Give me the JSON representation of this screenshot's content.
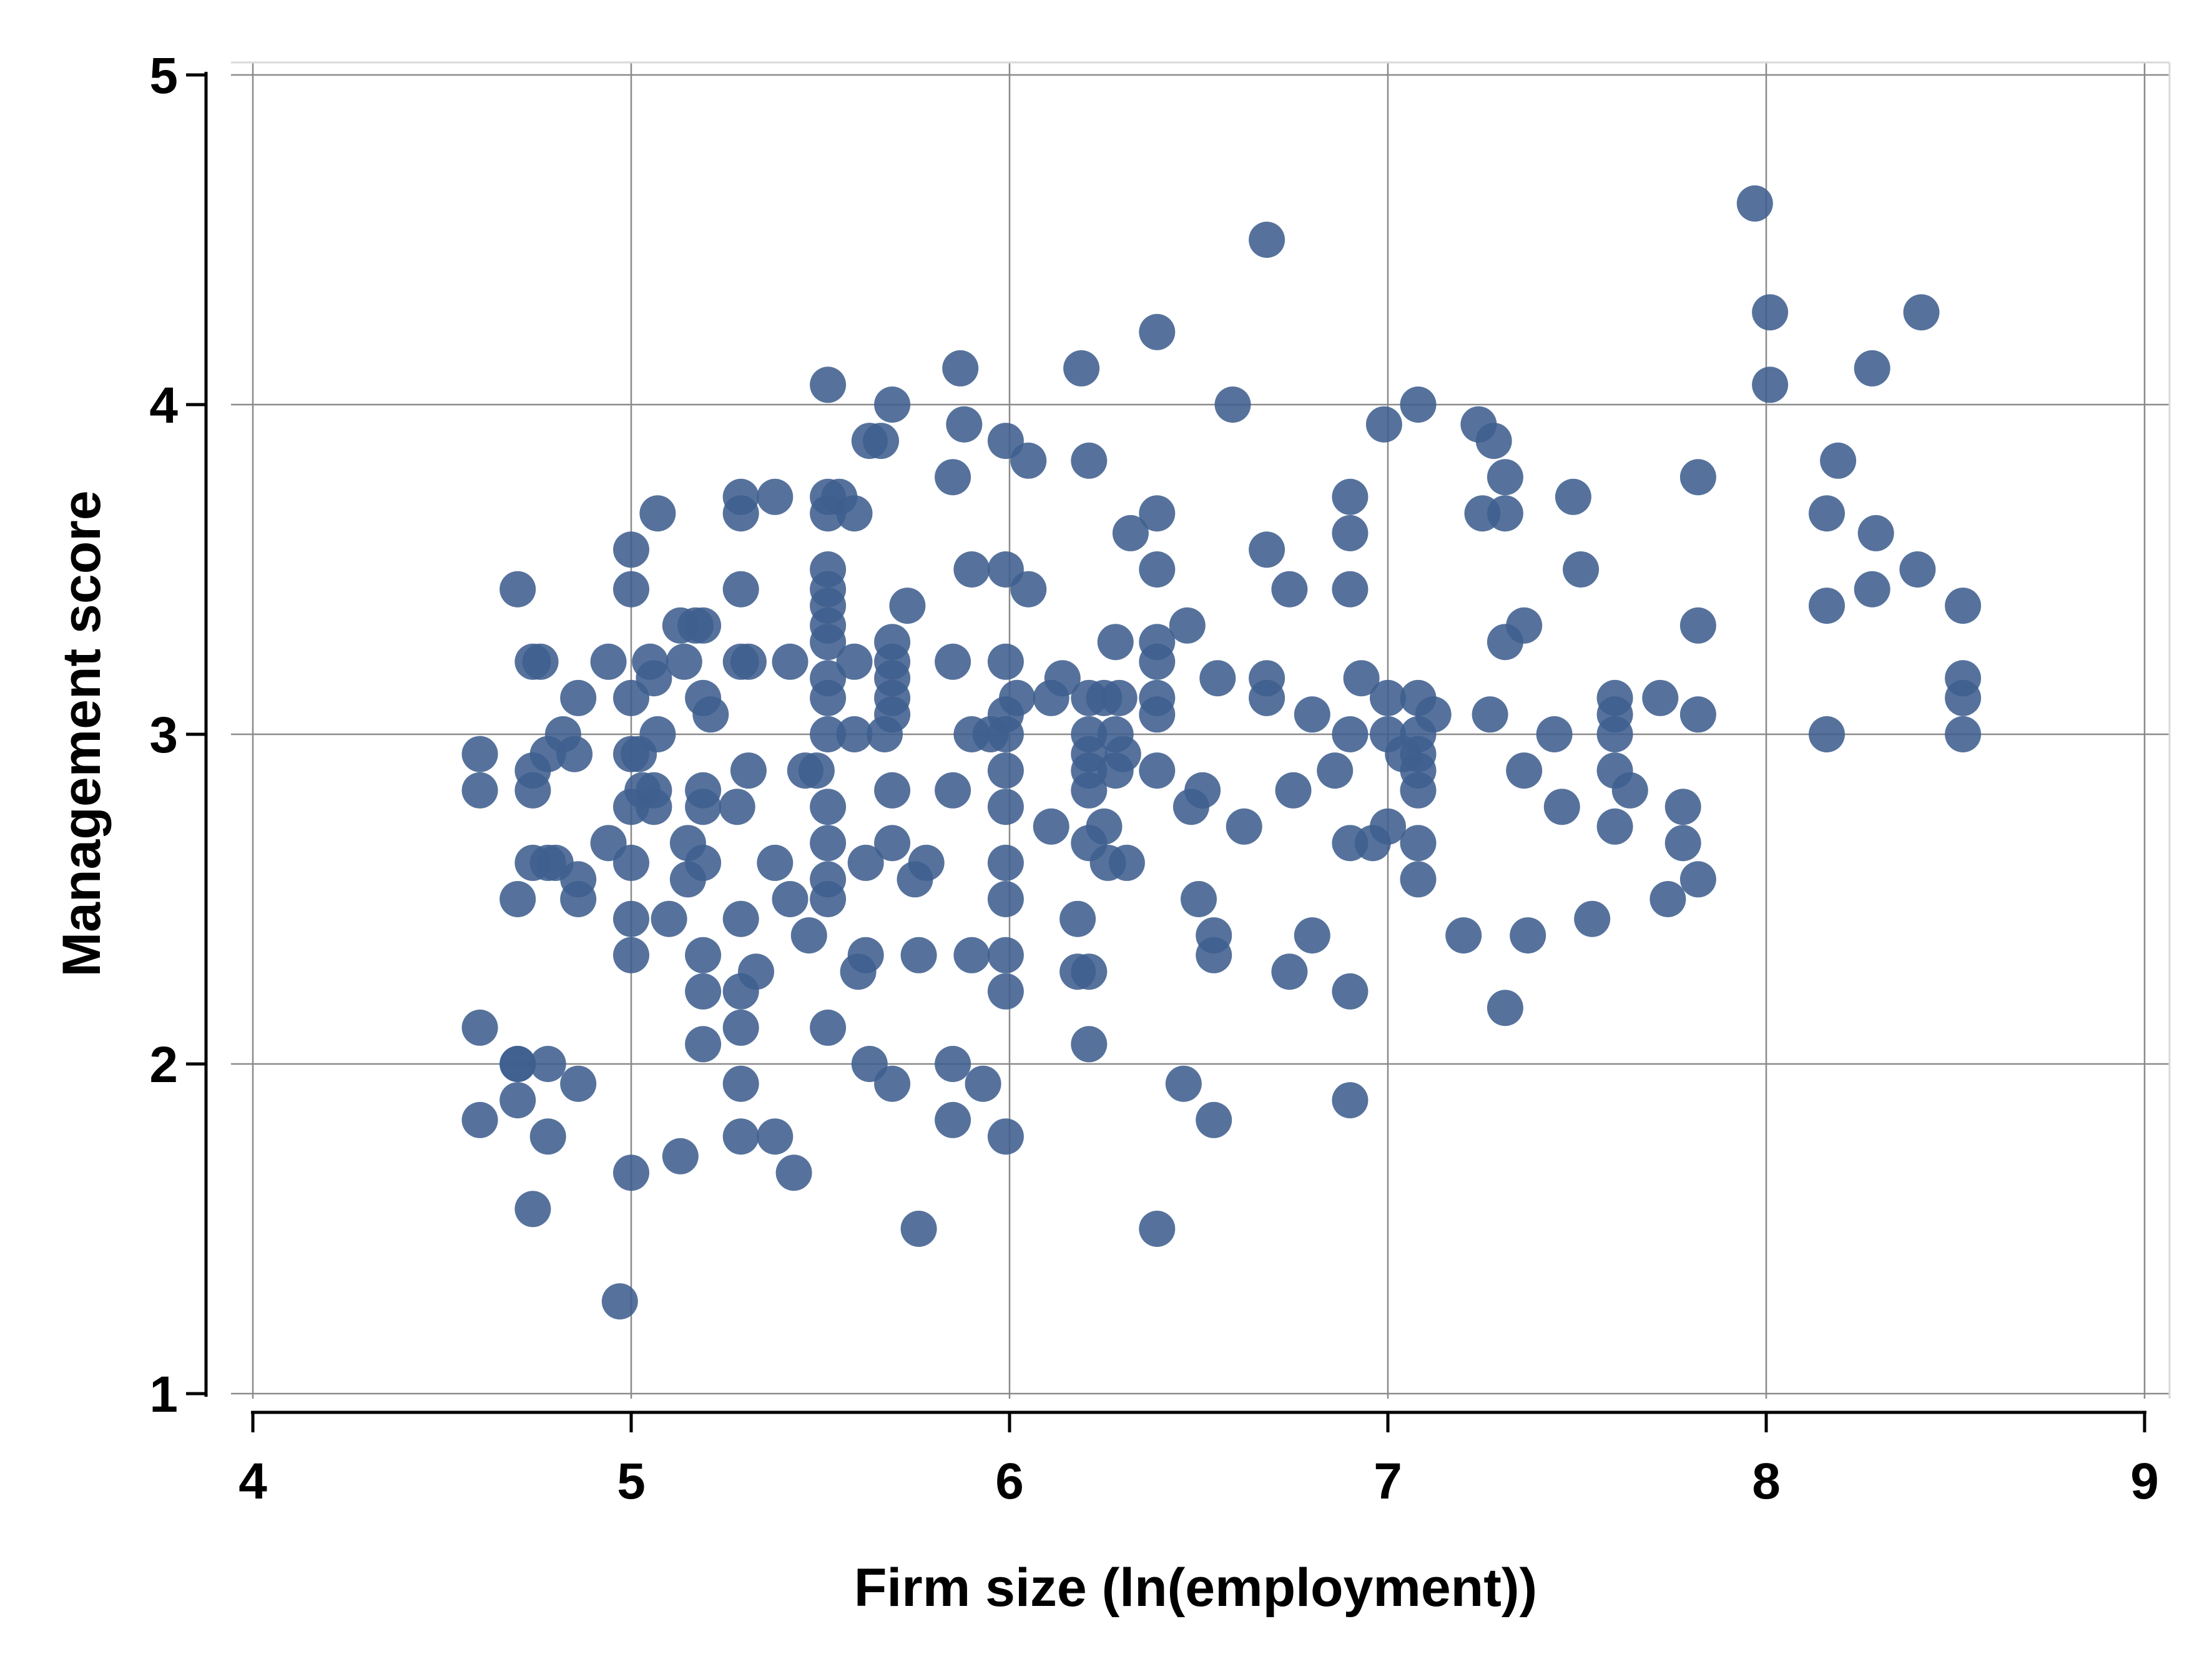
{
  "chart_data": {
    "type": "scatter",
    "title": "",
    "xlabel": "Firm size (ln(employment))",
    "ylabel": "Management score",
    "xlim": [
      4,
      9
    ],
    "ylim": [
      1,
      5
    ],
    "x_ticks": [
      "4",
      "5",
      "6",
      "7",
      "8",
      "9"
    ],
    "y_ticks": [
      "1",
      "2",
      "3",
      "4",
      "5"
    ],
    "grid": true,
    "legend": "none",
    "colors": {
      "marker": "#3f5f8e",
      "grid": "#8a8a8a",
      "axis": "#000000"
    },
    "points": [
      [
        4.6,
        2.94
      ],
      [
        4.6,
        2.83
      ],
      [
        4.6,
        2.11
      ],
      [
        4.6,
        1.83
      ],
      [
        4.7,
        3.44
      ],
      [
        4.7,
        2.5
      ],
      [
        4.7,
        2.0
      ],
      [
        4.7,
        1.89
      ],
      [
        4.7,
        2.0
      ],
      [
        4.74,
        3.22
      ],
      [
        4.74,
        2.89
      ],
      [
        4.74,
        2.83
      ],
      [
        4.74,
        2.61
      ],
      [
        4.74,
        1.56
      ],
      [
        4.76,
        3.22
      ],
      [
        4.78,
        2.94
      ],
      [
        4.78,
        2.61
      ],
      [
        4.78,
        2.0
      ],
      [
        4.78,
        1.78
      ],
      [
        4.8,
        2.61
      ],
      [
        4.82,
        3.0
      ],
      [
        4.85,
        2.94
      ],
      [
        4.86,
        3.11
      ],
      [
        4.86,
        2.56
      ],
      [
        4.86,
        2.5
      ],
      [
        4.86,
        1.94
      ],
      [
        4.94,
        3.22
      ],
      [
        4.94,
        2.67
      ],
      [
        4.97,
        1.28
      ],
      [
        5.0,
        3.56
      ],
      [
        5.0,
        3.44
      ],
      [
        5.0,
        3.11
      ],
      [
        5.0,
        2.94
      ],
      [
        5.0,
        2.78
      ],
      [
        5.0,
        2.61
      ],
      [
        5.0,
        2.44
      ],
      [
        5.0,
        2.33
      ],
      [
        5.0,
        1.67
      ],
      [
        5.02,
        2.94
      ],
      [
        5.03,
        2.83
      ],
      [
        5.05,
        3.22
      ],
      [
        5.06,
        3.17
      ],
      [
        5.06,
        2.83
      ],
      [
        5.06,
        2.78
      ],
      [
        5.07,
        3.67
      ],
      [
        5.07,
        3.0
      ],
      [
        5.1,
        2.44
      ],
      [
        5.13,
        1.72
      ],
      [
        5.13,
        3.33
      ],
      [
        5.14,
        3.22
      ],
      [
        5.15,
        2.56
      ],
      [
        5.15,
        2.67
      ],
      [
        5.17,
        3.33
      ],
      [
        5.19,
        3.33
      ],
      [
        5.19,
        3.11
      ],
      [
        5.19,
        2.83
      ],
      [
        5.19,
        2.78
      ],
      [
        5.19,
        2.61
      ],
      [
        5.19,
        2.33
      ],
      [
        5.19,
        2.22
      ],
      [
        5.19,
        2.06
      ],
      [
        5.21,
        3.06
      ],
      [
        5.28,
        2.78
      ],
      [
        5.29,
        3.72
      ],
      [
        5.29,
        3.67
      ],
      [
        5.29,
        3.44
      ],
      [
        5.29,
        3.22
      ],
      [
        5.29,
        2.44
      ],
      [
        5.29,
        2.22
      ],
      [
        5.29,
        2.11
      ],
      [
        5.29,
        1.94
      ],
      [
        5.29,
        1.78
      ],
      [
        5.31,
        3.22
      ],
      [
        5.31,
        2.89
      ],
      [
        5.33,
        2.28
      ],
      [
        5.38,
        3.72
      ],
      [
        5.38,
        2.61
      ],
      [
        5.38,
        1.78
      ],
      [
        5.42,
        3.22
      ],
      [
        5.42,
        2.5
      ],
      [
        5.43,
        1.67
      ],
      [
        5.46,
        2.89
      ],
      [
        5.47,
        2.39
      ],
      [
        5.49,
        2.89
      ],
      [
        5.52,
        4.06
      ],
      [
        5.52,
        3.72
      ],
      [
        5.52,
        3.67
      ],
      [
        5.52,
        3.5
      ],
      [
        5.52,
        3.44
      ],
      [
        5.52,
        3.39
      ],
      [
        5.52,
        3.33
      ],
      [
        5.52,
        3.28
      ],
      [
        5.52,
        3.17
      ],
      [
        5.52,
        3.11
      ],
      [
        5.52,
        3.0
      ],
      [
        5.52,
        2.78
      ],
      [
        5.52,
        2.67
      ],
      [
        5.52,
        2.56
      ],
      [
        5.52,
        2.5
      ],
      [
        5.52,
        2.11
      ],
      [
        5.55,
        3.72
      ],
      [
        5.59,
        3.67
      ],
      [
        5.59,
        3.22
      ],
      [
        5.59,
        3.0
      ],
      [
        5.6,
        2.28
      ],
      [
        5.62,
        2.33
      ],
      [
        5.62,
        2.61
      ],
      [
        5.63,
        3.89
      ],
      [
        5.63,
        2.0
      ],
      [
        5.66,
        3.89
      ],
      [
        5.67,
        3.0
      ],
      [
        5.69,
        4.0
      ],
      [
        5.69,
        3.28
      ],
      [
        5.69,
        3.22
      ],
      [
        5.69,
        3.17
      ],
      [
        5.69,
        3.11
      ],
      [
        5.69,
        3.06
      ],
      [
        5.69,
        2.83
      ],
      [
        5.69,
        2.67
      ],
      [
        5.69,
        1.94
      ],
      [
        5.73,
        3.39
      ],
      [
        5.75,
        2.56
      ],
      [
        5.76,
        2.33
      ],
      [
        5.76,
        1.5
      ],
      [
        5.78,
        2.61
      ],
      [
        5.85,
        3.78
      ],
      [
        5.85,
        3.22
      ],
      [
        5.85,
        2.83
      ],
      [
        5.85,
        2.0
      ],
      [
        5.85,
        1.83
      ],
      [
        5.87,
        4.11
      ],
      [
        5.88,
        3.94
      ],
      [
        5.9,
        3.5
      ],
      [
        5.9,
        3.0
      ],
      [
        5.9,
        2.33
      ],
      [
        5.93,
        1.94
      ],
      [
        5.95,
        3.0
      ],
      [
        5.99,
        3.89
      ],
      [
        5.99,
        3.5
      ],
      [
        5.99,
        3.22
      ],
      [
        5.99,
        3.06
      ],
      [
        5.99,
        3.0
      ],
      [
        5.99,
        2.89
      ],
      [
        5.99,
        2.78
      ],
      [
        5.99,
        2.61
      ],
      [
        5.99,
        2.5
      ],
      [
        5.99,
        2.33
      ],
      [
        5.99,
        2.22
      ],
      [
        5.99,
        1.78
      ],
      [
        6.02,
        3.11
      ],
      [
        6.05,
        3.83
      ],
      [
        6.05,
        3.44
      ],
      [
        6.11,
        3.11
      ],
      [
        6.11,
        2.72
      ],
      [
        6.14,
        3.17
      ],
      [
        6.18,
        2.44
      ],
      [
        6.18,
        2.28
      ],
      [
        6.19,
        4.11
      ],
      [
        6.21,
        3.83
      ],
      [
        6.21,
        3.11
      ],
      [
        6.21,
        3.0
      ],
      [
        6.21,
        2.94
      ],
      [
        6.21,
        2.89
      ],
      [
        6.21,
        2.83
      ],
      [
        6.21,
        2.67
      ],
      [
        6.21,
        2.28
      ],
      [
        6.21,
        2.06
      ],
      [
        6.25,
        3.11
      ],
      [
        6.25,
        2.72
      ],
      [
        6.26,
        2.61
      ],
      [
        6.28,
        3.28
      ],
      [
        6.28,
        3.0
      ],
      [
        6.28,
        2.89
      ],
      [
        6.29,
        3.11
      ],
      [
        6.3,
        2.94
      ],
      [
        6.31,
        2.61
      ],
      [
        6.32,
        3.61
      ],
      [
        6.39,
        4.22
      ],
      [
        6.39,
        3.67
      ],
      [
        6.39,
        3.5
      ],
      [
        6.39,
        3.28
      ],
      [
        6.39,
        3.22
      ],
      [
        6.39,
        3.11
      ],
      [
        6.39,
        3.06
      ],
      [
        6.39,
        2.89
      ],
      [
        6.39,
        1.5
      ],
      [
        6.46,
        1.94
      ],
      [
        6.47,
        3.33
      ],
      [
        6.48,
        2.78
      ],
      [
        6.5,
        2.5
      ],
      [
        6.51,
        2.83
      ],
      [
        6.54,
        2.39
      ],
      [
        6.54,
        2.33
      ],
      [
        6.54,
        1.83
      ],
      [
        6.55,
        3.17
      ],
      [
        6.59,
        4.0
      ],
      [
        6.62,
        2.72
      ],
      [
        6.68,
        4.5
      ],
      [
        6.68,
        3.56
      ],
      [
        6.68,
        3.17
      ],
      [
        6.68,
        3.11
      ],
      [
        6.74,
        3.44
      ],
      [
        6.74,
        2.28
      ],
      [
        6.75,
        2.83
      ],
      [
        6.8,
        3.06
      ],
      [
        6.8,
        2.39
      ],
      [
        6.86,
        2.89
      ],
      [
        6.9,
        3.72
      ],
      [
        6.9,
        3.61
      ],
      [
        6.9,
        3.44
      ],
      [
        6.9,
        3.0
      ],
      [
        6.9,
        2.67
      ],
      [
        6.9,
        2.22
      ],
      [
        6.9,
        1.89
      ],
      [
        6.93,
        3.17
      ],
      [
        6.96,
        2.67
      ],
      [
        6.99,
        3.94
      ],
      [
        7.0,
        3.11
      ],
      [
        7.0,
        3.0
      ],
      [
        7.0,
        2.72
      ],
      [
        7.04,
        2.94
      ],
      [
        7.08,
        4.0
      ],
      [
        7.08,
        3.11
      ],
      [
        7.08,
        3.0
      ],
      [
        7.08,
        2.94
      ],
      [
        7.08,
        2.89
      ],
      [
        7.08,
        2.83
      ],
      [
        7.08,
        2.67
      ],
      [
        7.08,
        2.56
      ],
      [
        7.12,
        3.06
      ],
      [
        7.2,
        2.39
      ],
      [
        7.24,
        3.94
      ],
      [
        7.25,
        3.67
      ],
      [
        7.27,
        3.06
      ],
      [
        7.28,
        3.89
      ],
      [
        7.31,
        3.78
      ],
      [
        7.31,
        3.67
      ],
      [
        7.31,
        3.28
      ],
      [
        7.31,
        2.17
      ],
      [
        7.36,
        3.33
      ],
      [
        7.36,
        2.89
      ],
      [
        7.37,
        2.39
      ],
      [
        7.44,
        3.0
      ],
      [
        7.46,
        2.78
      ],
      [
        7.49,
        3.72
      ],
      [
        7.51,
        3.5
      ],
      [
        7.54,
        2.44
      ],
      [
        7.6,
        3.11
      ],
      [
        7.6,
        3.06
      ],
      [
        7.6,
        3.0
      ],
      [
        7.6,
        2.89
      ],
      [
        7.6,
        2.72
      ],
      [
        7.64,
        2.83
      ],
      [
        7.72,
        3.11
      ],
      [
        7.74,
        2.5
      ],
      [
        7.78,
        2.78
      ],
      [
        7.78,
        2.67
      ],
      [
        7.82,
        3.78
      ],
      [
        7.82,
        3.33
      ],
      [
        7.82,
        3.06
      ],
      [
        7.82,
        2.56
      ],
      [
        7.97,
        4.61
      ],
      [
        8.01,
        4.28
      ],
      [
        8.01,
        4.06
      ],
      [
        8.16,
        3.67
      ],
      [
        8.16,
        3.39
      ],
      [
        8.16,
        3.0
      ],
      [
        8.19,
        3.83
      ],
      [
        8.28,
        4.11
      ],
      [
        8.28,
        3.44
      ],
      [
        8.29,
        3.61
      ],
      [
        8.4,
        3.5
      ],
      [
        8.41,
        4.28
      ],
      [
        8.52,
        3.39
      ],
      [
        8.52,
        3.17
      ],
      [
        8.52,
        3.11
      ],
      [
        8.52,
        3.0
      ]
    ]
  }
}
